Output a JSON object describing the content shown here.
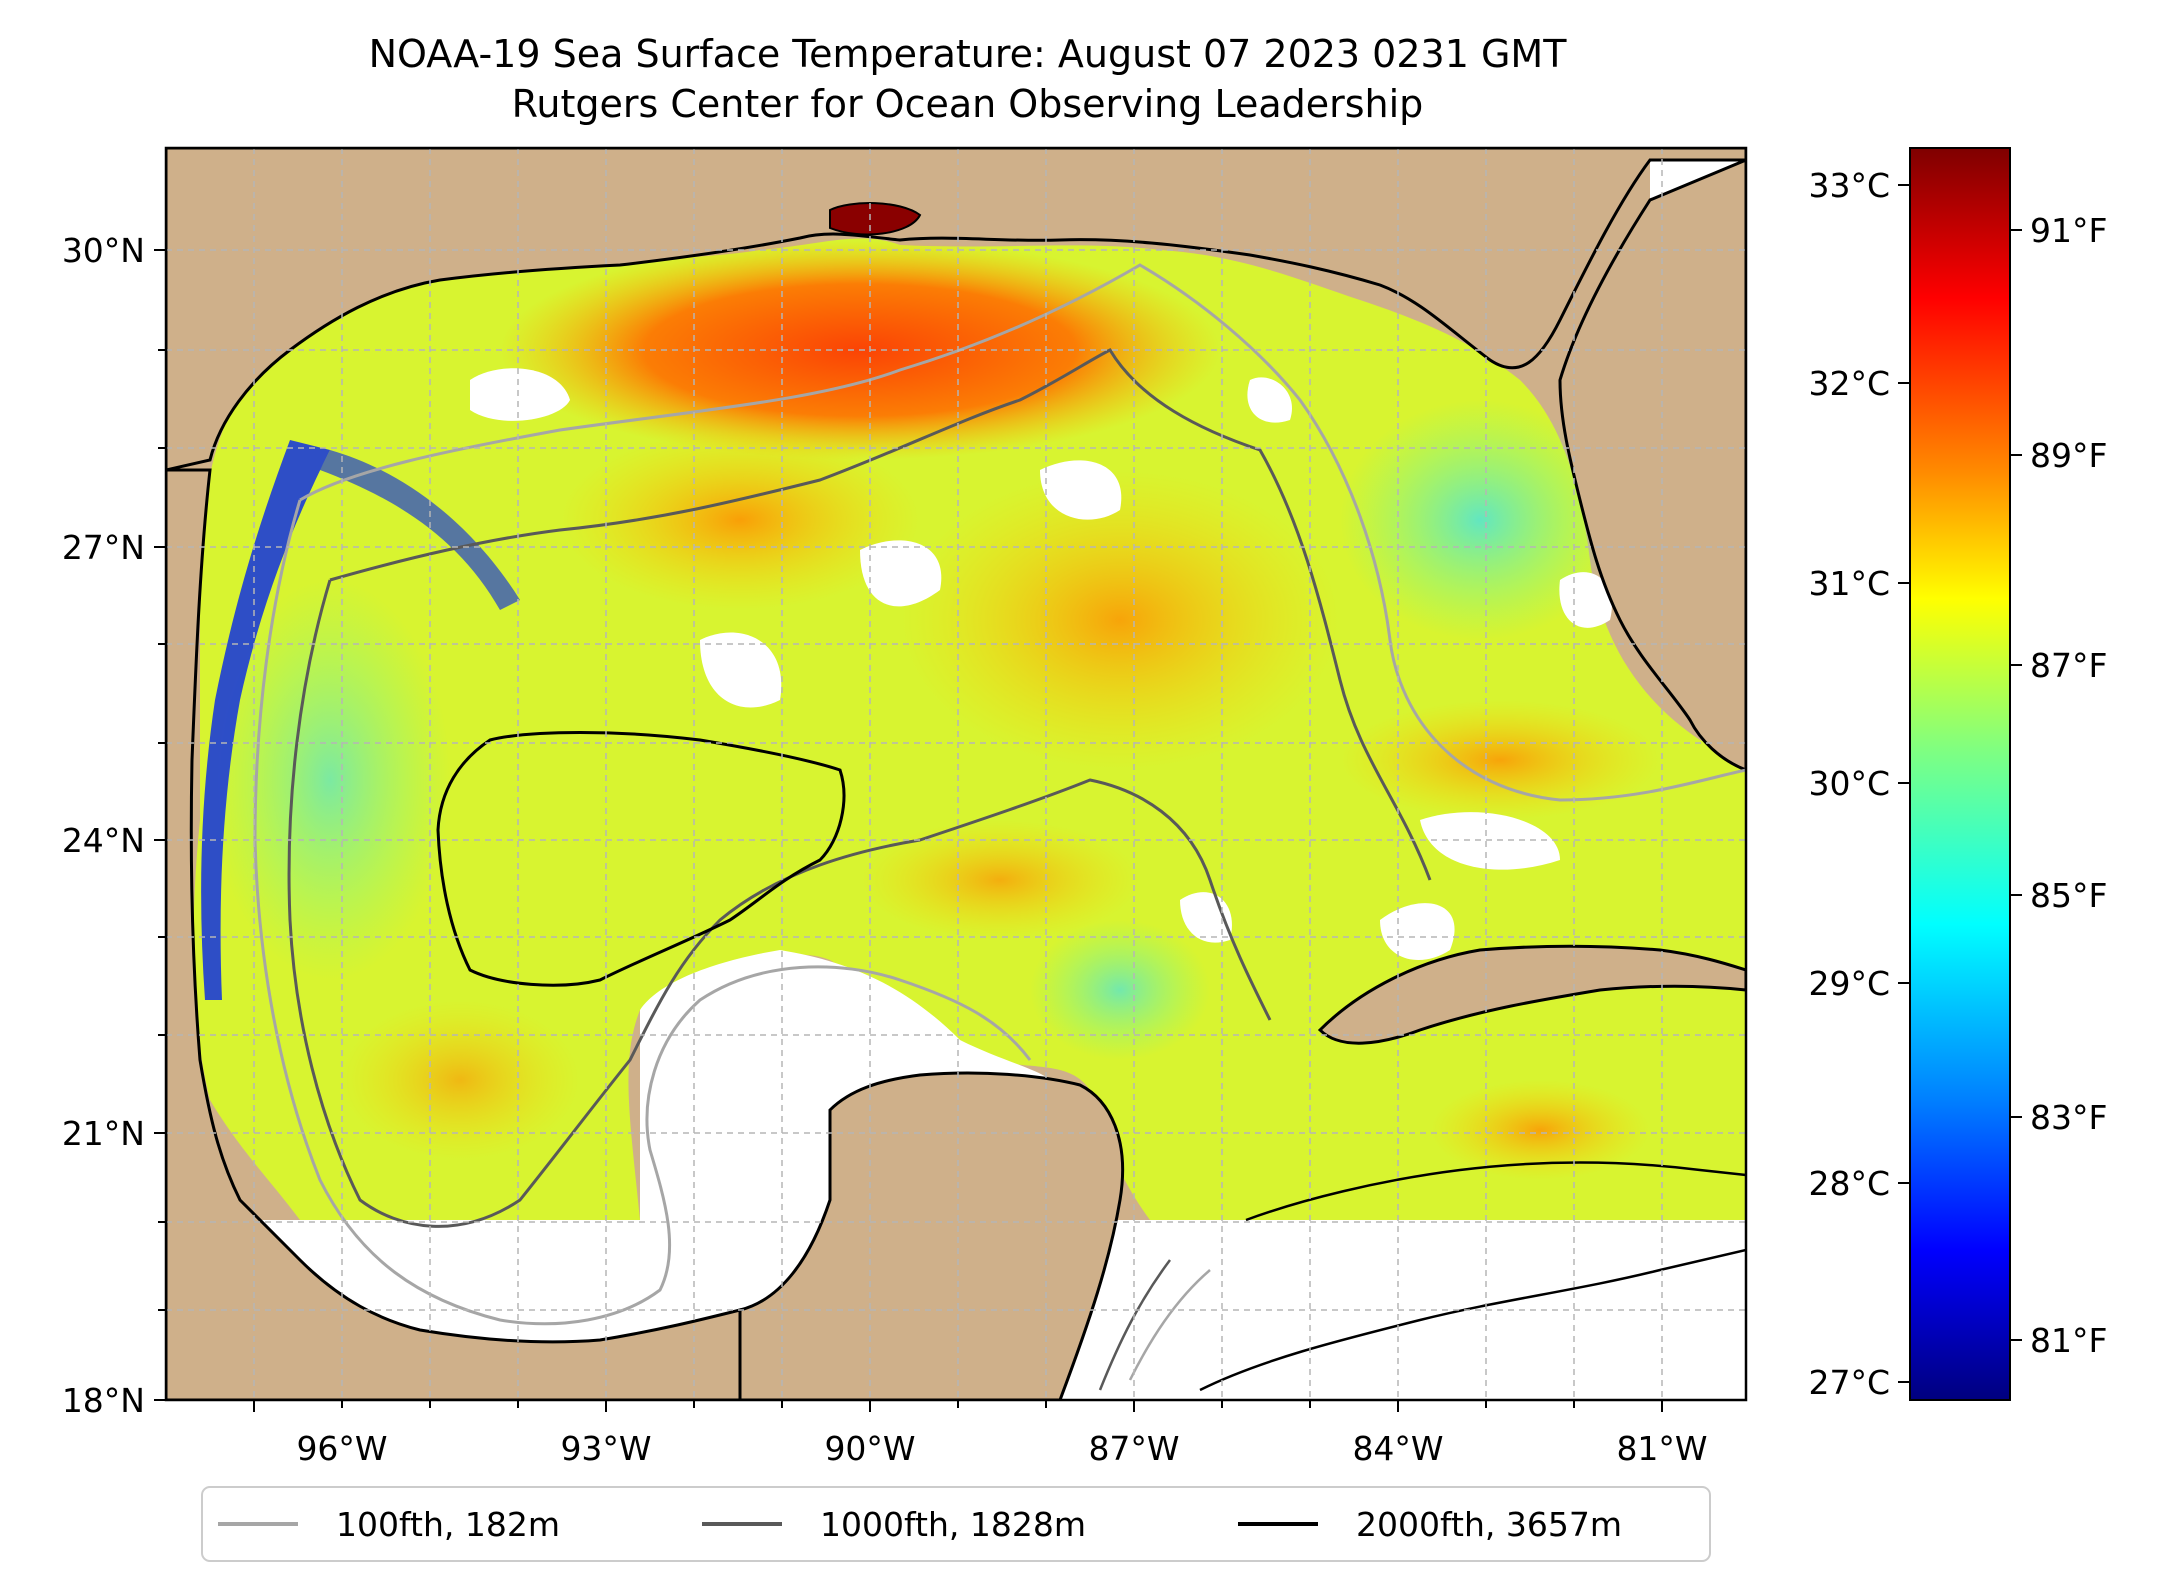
{
  "title": {
    "line1": "NOAA-19 Sea Surface Temperature: August 07 2023 0231 GMT",
    "line2": "Rutgers Center for Ocean Observing Leadership"
  },
  "map": {
    "lon_labels": [
      "96°W",
      "93°W",
      "90°W",
      "87°W",
      "84°W",
      "81°W"
    ],
    "lat_labels": [
      "30°N",
      "27°N",
      "24°N",
      "21°N",
      "18°N"
    ],
    "colors": {
      "land": "#cfb08a",
      "no_data": "#ffffff",
      "grid": "#b5b5b5"
    }
  },
  "colorbar": {
    "celsius_labels": [
      "33°C",
      "32°C",
      "31°C",
      "30°C",
      "29°C",
      "28°C",
      "27°C"
    ],
    "fahrenheit_labels": [
      "91°F",
      "89°F",
      "87°F",
      "85°F",
      "83°F",
      "81°F"
    ],
    "colormap": [
      "#7f0000",
      "#ff0000",
      "#ff8c00",
      "#ffff00",
      "#80ff80",
      "#00ffff",
      "#0080ff",
      "#0000ff",
      "#00007f"
    ]
  },
  "legend": {
    "items": [
      {
        "label": "100fth, 182m",
        "color": "#a6a6a6"
      },
      {
        "label": "1000fth, 1828m",
        "color": "#595959"
      },
      {
        "label": "2000fth, 3657m",
        "color": "#000000"
      }
    ]
  }
}
